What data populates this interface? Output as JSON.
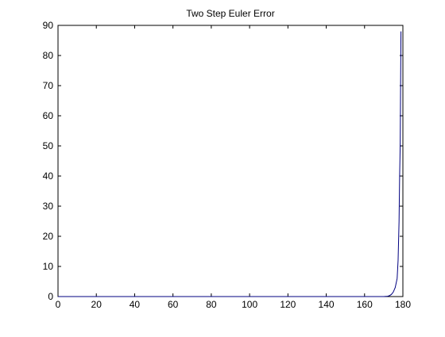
{
  "chart_data": {
    "type": "line",
    "title": "Two Step Euler Error",
    "xlabel": "",
    "ylabel": "",
    "xlim": [
      0,
      180
    ],
    "ylim": [
      0,
      90
    ],
    "xticks": [
      0,
      20,
      40,
      60,
      80,
      100,
      120,
      140,
      160,
      180
    ],
    "yticks": [
      0,
      10,
      20,
      30,
      40,
      50,
      60,
      70,
      80,
      90
    ],
    "grid": false,
    "series": [
      {
        "color": "#000080",
        "x": [
          0,
          20,
          40,
          60,
          80,
          100,
          120,
          140,
          160,
          170,
          172,
          173,
          174,
          175,
          176,
          177,
          177.5,
          178,
          178.3,
          178.6,
          178.8,
          179
        ],
        "y": [
          0,
          0,
          0,
          0,
          0,
          0,
          0,
          0,
          0,
          0,
          0.1,
          0.3,
          0.7,
          1.5,
          3,
          6,
          12,
          25,
          40,
          50,
          70,
          88
        ]
      }
    ]
  }
}
